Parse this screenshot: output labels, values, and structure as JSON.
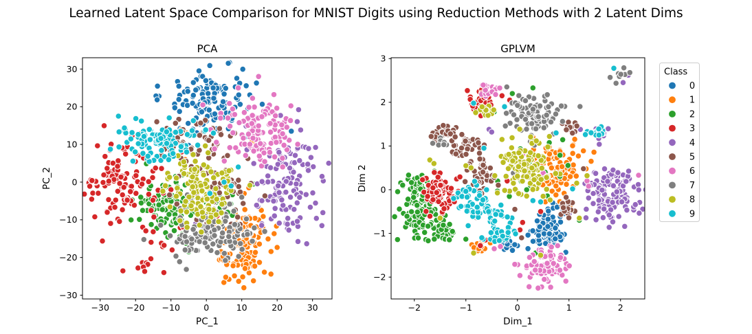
{
  "figure": {
    "title": "Learned Latent Space Comparison for MNIST Digits using Reduction Methods with 2 Latent Dims",
    "background": "#ffffff"
  },
  "legend": {
    "title": "Class",
    "entries": [
      {
        "label": "0",
        "color": "#1f77b4"
      },
      {
        "label": "1",
        "color": "#ff7f0e"
      },
      {
        "label": "2",
        "color": "#2ca02c"
      },
      {
        "label": "3",
        "color": "#d62728"
      },
      {
        "label": "4",
        "color": "#9467bd"
      },
      {
        "label": "5",
        "color": "#8c564b"
      },
      {
        "label": "6",
        "color": "#e377c2"
      },
      {
        "label": "7",
        "color": "#7f7f7f"
      },
      {
        "label": "8",
        "color": "#bcbd22"
      },
      {
        "label": "9",
        "color": "#17becf"
      }
    ]
  },
  "chart_data": [
    {
      "id": "pca",
      "type": "scatter",
      "title": "PCA",
      "xlabel": "PC_1",
      "ylabel": "PC_2",
      "xlim": [
        -35,
        35.5
      ],
      "ylim": [
        -31,
        33
      ],
      "xticks": [
        -30,
        -20,
        -10,
        0,
        10,
        20,
        30
      ],
      "yticks": [
        -30,
        -20,
        -10,
        0,
        10,
        20,
        30
      ],
      "grid": false,
      "series": [
        {
          "class": "0",
          "clusters": [
            [
              1.5,
              22.5,
              5.5,
              4.2,
              130
            ]
          ],
          "points": [
            [
              8.5,
              -0.5
            ],
            [
              24,
              13.5
            ],
            [
              22.5,
              9
            ]
          ]
        },
        {
          "class": "1",
          "clusters": [
            [
              10.5,
              -17,
              4,
              4.8,
              115
            ]
          ],
          "points": [
            [
              -7,
              14
            ],
            [
              -5.5,
              13
            ],
            [
              -6,
              6
            ],
            [
              -3.5,
              0
            ],
            [
              -8,
              -2
            ],
            [
              2,
              8
            ],
            [
              13,
              11
            ],
            [
              14,
              10
            ],
            [
              12,
              -1.5
            ]
          ]
        },
        {
          "class": "2",
          "clusters": [
            [
              -11,
              -6.5,
              4.5,
              4,
              115
            ],
            [
              2,
              -3,
              5,
              4,
              14
            ]
          ],
          "points": [
            [
              6,
              -8
            ],
            [
              3,
              -5
            ]
          ]
        },
        {
          "class": "3",
          "clusters": [
            [
              -23,
              0,
              5,
              5.8,
              115
            ],
            [
              -17,
              -18,
              4,
              4.5,
              18
            ]
          ],
          "points": [
            [
              -7,
              8
            ],
            [
              6,
              -4
            ],
            [
              -2,
              -6
            ],
            [
              3,
              -9
            ],
            [
              -10,
              -2
            ],
            [
              -28,
              -8
            ],
            [
              -12,
              -24
            ]
          ]
        },
        {
          "class": "4",
          "clusters": [
            [
              23,
              -0.5,
              4.5,
              6.5,
              130
            ]
          ],
          "points": [
            [
              -3,
              -11
            ]
          ]
        },
        {
          "class": "5",
          "clusters": [
            [
              -3,
              10,
              7,
              4,
              60
            ],
            [
              3,
              -2,
              5,
              5,
              50
            ]
          ],
          "points": [
            [
              -14,
              16
            ],
            [
              8,
              13
            ]
          ]
        },
        {
          "class": "6",
          "clusters": [
            [
              15.5,
              13,
              4.5,
              4.5,
              120
            ]
          ],
          "points": [
            [
              9,
              25
            ],
            [
              -1,
              20.5
            ],
            [
              4,
              17
            ]
          ]
        },
        {
          "class": "7",
          "clusters": [
            [
              1,
              -13.5,
              6,
              4.5,
              125
            ]
          ],
          "points": [
            [
              10,
              -4
            ],
            [
              -6,
              -18
            ]
          ]
        },
        {
          "class": "8",
          "clusters": [
            [
              -1,
              -1.5,
              4.5,
              5,
              125
            ]
          ],
          "points": [
            [
              -8,
              7
            ]
          ]
        },
        {
          "class": "9",
          "clusters": [
            [
              -15,
              11,
              5,
              3,
              105
            ]
          ],
          "points": [
            [
              5,
              0
            ],
            [
              7,
              -1
            ],
            [
              1,
              -3
            ],
            [
              9,
              4
            ],
            [
              2,
              13
            ]
          ]
        }
      ]
    },
    {
      "id": "gplvm",
      "type": "scatter",
      "title": "GPLVM",
      "xlabel": "Dim_1",
      "ylabel": "Dim 2",
      "xlim": [
        -2.45,
        2.47
      ],
      "ylim": [
        -2.5,
        3.02
      ],
      "xticks": [
        -2,
        -1,
        0,
        1,
        2
      ],
      "yticks": [
        -2,
        -1,
        0,
        1,
        2,
        3
      ],
      "grid": false,
      "series": [
        {
          "class": "0",
          "clusters": [
            [
              0.63,
              -0.9,
              0.16,
              0.25,
              95
            ],
            [
              -0.15,
              -1.28,
              0.08,
              0.08,
              13
            ]
          ],
          "points": []
        },
        {
          "class": "1",
          "clusters": [
            [
              0.78,
              0.42,
              0.27,
              0.3,
              105
            ],
            [
              -0.8,
              -1.3,
              0.09,
              0.07,
              13
            ]
          ],
          "points": [
            [
              0.3,
              1.2
            ],
            [
              0.25,
              1.12
            ],
            [
              1.43,
              0.65
            ]
          ]
        },
        {
          "class": "2",
          "clusters": [
            [
              -1.95,
              -0.35,
              0.2,
              0.38,
              110
            ],
            [
              -1.45,
              -0.95,
              0.17,
              0.15,
              40
            ],
            [
              0.25,
              0.2,
              0.55,
              0.6,
              22
            ]
          ],
          "points": [
            [
              -0.1,
              2.2
            ],
            [
              0.3,
              2.33
            ],
            [
              -0.45,
              1.78
            ],
            [
              1.2,
              -0.7
            ],
            [
              0.35,
              -1.45
            ],
            [
              0.15,
              2.05
            ]
          ]
        },
        {
          "class": "3",
          "clusters": [
            [
              -1.5,
              -0.05,
              0.17,
              0.25,
              80
            ],
            [
              -0.72,
              2.05,
              0.12,
              0.12,
              26
            ]
          ],
          "points": [
            [
              -0.3,
              2.15
            ],
            [
              -0.15,
              2.05
            ],
            [
              0.1,
              -0.75
            ],
            [
              0.05,
              -0.92
            ],
            [
              -0.62,
              -1.15
            ],
            [
              -0.72,
              -1.28
            ],
            [
              0.45,
              -0.5
            ],
            [
              -0.2,
              0.2
            ]
          ]
        },
        {
          "class": "4",
          "clusters": [
            [
              1.83,
              -0.1,
              0.25,
              0.3,
              130
            ],
            [
              1.62,
              1.3,
              0.08,
              0.08,
              9
            ]
          ],
          "points": [
            [
              2.15,
              2.62
            ],
            [
              2.05,
              2.45
            ],
            [
              1.22,
              1.38
            ],
            [
              -0.55,
              1.38
            ],
            [
              -0.5,
              1.32
            ]
          ]
        },
        {
          "class": "5",
          "clusters": [
            [
              -1.45,
              1.3,
              0.13,
              0.1,
              24
            ],
            [
              -1.05,
              1.0,
              0.15,
              0.15,
              40
            ],
            [
              -0.72,
              0.35,
              0.14,
              0.25,
              45
            ],
            [
              1.0,
              -0.4,
              0.1,
              0.12,
              20
            ],
            [
              1.0,
              1.45,
              0.08,
              0.07,
              13
            ]
          ],
          "points": [
            [
              -0.45,
              0.28
            ],
            [
              1.28,
              0.48
            ],
            [
              -0.05,
              -0.45
            ],
            [
              0.08,
              -1.1
            ]
          ]
        },
        {
          "class": "6",
          "clusters": [
            [
              0.55,
              -1.75,
              0.22,
              0.2,
              90
            ],
            [
              -0.55,
              2.25,
              0.1,
              0.1,
              17
            ]
          ],
          "points": [
            [
              0.5,
              0.38
            ],
            [
              0.56,
              0.28
            ],
            [
              1.35,
              0.2
            ],
            [
              1.38,
              0.08
            ],
            [
              -0.45,
              -1.35
            ],
            [
              -0.33,
              -1.3
            ],
            [
              0.1,
              0.8
            ],
            [
              2.35,
              0.33
            ]
          ]
        },
        {
          "class": "7",
          "clusters": [
            [
              0.35,
              1.75,
              0.27,
              0.22,
              90
            ],
            [
              -1.5,
              1.08,
              0.09,
              0.06,
              10
            ],
            [
              2.02,
              2.62,
              0.08,
              0.08,
              8
            ]
          ],
          "points": [
            [
              0.33,
              1.02
            ],
            [
              0.25,
              1.1
            ],
            [
              -0.08,
              0.38
            ],
            [
              0.0,
              0.3
            ],
            [
              0.0,
              1.93
            ]
          ]
        },
        {
          "class": "8",
          "clusters": [
            [
              0.2,
              0.45,
              0.27,
              0.3,
              115
            ],
            [
              -0.6,
              1.78,
              0.09,
              0.08,
              15
            ]
          ],
          "points": [
            [
              -1.7,
              0.68
            ],
            [
              -1.62,
              0.6
            ],
            [
              -1.0,
              0.55
            ],
            [
              -0.9,
              0.5
            ],
            [
              -1.5,
              -0.65
            ],
            [
              -0.85,
              -1.45
            ],
            [
              1.15,
              0.15
            ],
            [
              1.35,
              0.32
            ],
            [
              1.2,
              -0.65
            ],
            [
              0.45,
              -1.5
            ],
            [
              0.62,
              1.22
            ],
            [
              -0.3,
              1.15
            ]
          ]
        },
        {
          "class": "9",
          "clusters": [
            [
              -1.0,
              -0.2,
              0.12,
              0.18,
              28
            ],
            [
              -0.6,
              -0.55,
              0.18,
              0.22,
              40
            ],
            [
              -0.28,
              -0.9,
              0.15,
              0.15,
              35
            ],
            [
              1.52,
              1.3,
              0.1,
              0.08,
              16
            ]
          ],
          "points": [
            [
              1.87,
              2.78
            ],
            [
              -0.25,
              1.9
            ],
            [
              -0.65,
              0.95
            ],
            [
              0.75,
              1.3
            ],
            [
              1.07,
              0.02
            ],
            [
              0.3,
              -0.25
            ],
            [
              0.45,
              -0.28
            ],
            [
              -0.85,
              1.98
            ]
          ]
        }
      ]
    }
  ]
}
